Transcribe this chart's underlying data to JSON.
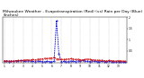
{
  "title": "Milwaukee Weather - Evapotranspiration (Red) (vs) Rain per Day (Blue) (Inches)",
  "title_fontsize": 3.2,
  "n_points": 52,
  "et_values": [
    0.08,
    0.06,
    0.07,
    0.05,
    0.06,
    0.08,
    0.09,
    0.07,
    0.1,
    0.11,
    0.12,
    0.1,
    0.13,
    0.11,
    0.14,
    0.15,
    0.16,
    0.18,
    0.17,
    0.19,
    0.2,
    0.22,
    0.16,
    0.15,
    0.14,
    0.13,
    0.14,
    0.16,
    0.17,
    0.15,
    0.13,
    0.14,
    0.12,
    0.11,
    0.13,
    0.15,
    0.14,
    0.12,
    0.11,
    0.1,
    0.09,
    0.1,
    0.08,
    0.07,
    0.09,
    0.08,
    0.07,
    0.06,
    0.08,
    0.07,
    0.06,
    0.05
  ],
  "rain_values": [
    0.05,
    0.07,
    0.04,
    0.06,
    0.05,
    0.08,
    0.06,
    0.09,
    0.07,
    0.05,
    0.08,
    0.06,
    0.05,
    0.04,
    0.06,
    0.05,
    0.04,
    0.03,
    0.05,
    0.04,
    0.03,
    0.05,
    1.85,
    0.4,
    0.04,
    0.05,
    0.03,
    0.04,
    0.06,
    0.05,
    0.04,
    0.08,
    0.05,
    0.09,
    0.06,
    0.05,
    0.04,
    0.08,
    0.05,
    0.04,
    0.03,
    0.05,
    0.04,
    0.03,
    0.05,
    0.04,
    0.03,
    0.02,
    0.04,
    0.03,
    0.02,
    0.01
  ],
  "et_color": "#cc0000",
  "rain_color": "#0000cc",
  "background_color": "#ffffff",
  "ylim": [
    0,
    2.0
  ],
  "ytick_values": [
    0.5,
    1.0,
    1.5,
    2.0
  ],
  "ytick_labels": [
    "0.5",
    "1",
    "1.5",
    "2"
  ],
  "grid_color": "#999999",
  "line_width": 0.6,
  "marker_size": 0.8,
  "figsize": [
    1.6,
    0.87
  ],
  "dpi": 100
}
